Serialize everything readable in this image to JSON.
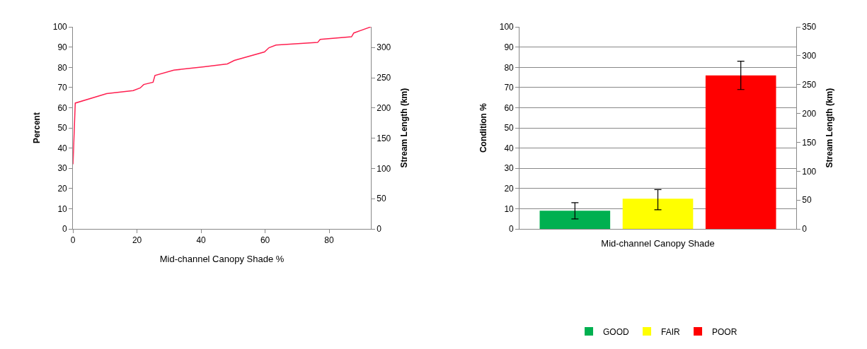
{
  "chart_data": [
    {
      "type": "line",
      "xlabel": "Mid-channel Canopy Shade %",
      "ylabel": "Percent",
      "y2label": "Stream Length (km)",
      "series": [
        {
          "color": "#ff2050",
          "x": [
            0,
            0.7,
            10.5,
            18.8,
            21,
            22.1,
            25,
            25.6,
            31.5,
            41,
            48.2,
            50.4,
            59.8,
            61.2,
            63.4,
            76.4,
            77.2,
            87,
            87.7,
            93
          ],
          "values": [
            32,
            62.3,
            67,
            68.5,
            69.8,
            71.5,
            72.6,
            76,
            78.6,
            80.3,
            81.7,
            83.4,
            87.6,
            89.7,
            91,
            92.3,
            93.8,
            95.1,
            97,
            100
          ]
        }
      ],
      "xlim": [
        0,
        93
      ],
      "xticks": [
        0,
        20,
        40,
        60,
        80
      ],
      "ylim": [
        0,
        100
      ],
      "yticks": [
        0,
        10,
        20,
        30,
        40,
        50,
        60,
        70,
        80,
        90,
        100
      ],
      "y2lim": [
        0,
        334
      ],
      "y2ticks": [
        0,
        50,
        100,
        150,
        200,
        250,
        300
      ],
      "grid": false,
      "legend": false
    },
    {
      "type": "bar",
      "xlabel": "Mid-channel Canopy Shade",
      "ylabel": "Condition %",
      "y2label": "Stream Length (km)",
      "categories": [
        null
      ],
      "series": [
        {
          "name": "GOOD",
          "color": "#00b050",
          "values": [
            9
          ],
          "errors": [
            [
              5,
              13
            ]
          ]
        },
        {
          "name": "FAIR",
          "color": "#ffff00",
          "values": [
            15
          ],
          "errors": [
            [
              9.5,
              19.5
            ]
          ]
        },
        {
          "name": "POOR",
          "color": "#ff0000",
          "values": [
            76
          ],
          "errors": [
            [
              69,
              83
            ]
          ]
        }
      ],
      "ylim": [
        0,
        100
      ],
      "yticks": [
        0,
        10,
        20,
        30,
        40,
        50,
        60,
        70,
        80,
        90,
        100
      ],
      "y2lim": [
        0,
        350
      ],
      "y2ticks": [
        0,
        50,
        100,
        150,
        200,
        250,
        300,
        350
      ],
      "grid": "y",
      "legend": "bottom",
      "tick_labels": "y"
    }
  ]
}
